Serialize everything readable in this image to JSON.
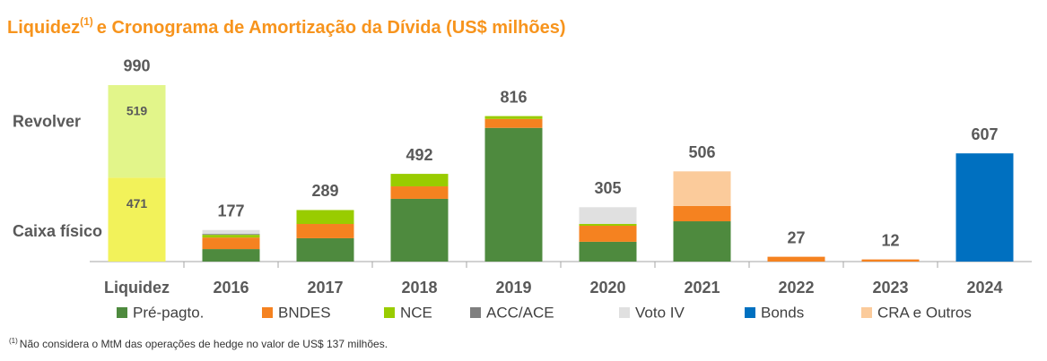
{
  "chart_data": {
    "type": "bar",
    "stacked": true,
    "title": {
      "main": "Liquidez",
      "note": "(1)",
      "rest": "e Cronograma de Amortização da Dívida (US$ milhões)"
    },
    "liquidez": {
      "category": "Liquidez",
      "total": 990,
      "segments": [
        {
          "label": "Caixa físico",
          "value": 471,
          "color": "#f2f25a"
        },
        {
          "label": "Revolver",
          "value": 519,
          "color": "#e2f58a"
        }
      ]
    },
    "categories": [
      "2016",
      "2017",
      "2018",
      "2019",
      "2020",
      "2021",
      "2022",
      "2023",
      "2024"
    ],
    "series": [
      {
        "name": "Pré-pagto.",
        "color": "#4e8a3e",
        "values": [
          70,
          131,
          352,
          750,
          111,
          226,
          null,
          null,
          null
        ]
      },
      {
        "name": "BNDES",
        "color": "#f58220",
        "values": [
          65,
          80,
          70,
          50,
          90,
          86,
          27,
          12,
          null
        ]
      },
      {
        "name": "NCE",
        "color": "#99cc00",
        "values": [
          15,
          78,
          70,
          16,
          10,
          null,
          null,
          null,
          null
        ]
      },
      {
        "name": "ACC/ACE",
        "color": "#7f7f7f",
        "values": [
          5,
          null,
          null,
          null,
          null,
          null,
          null,
          null,
          null
        ]
      },
      {
        "name": "Voto IV",
        "color": "#e0e0e0",
        "values": [
          22,
          null,
          null,
          null,
          94,
          null,
          null,
          null,
          null
        ]
      },
      {
        "name": "Bonds",
        "color": "#0070c0",
        "values": [
          null,
          null,
          null,
          null,
          null,
          null,
          null,
          null,
          607
        ]
      },
      {
        "name": "CRA e Outros",
        "color": "#fbcb9b",
        "values": [
          null,
          null,
          null,
          null,
          null,
          194,
          null,
          null,
          null
        ]
      }
    ],
    "totals": [
      177,
      289,
      492,
      816,
      305,
      506,
      27,
      12,
      607
    ],
    "ylim": [
      0,
      1000
    ],
    "legend": "bottom",
    "footnote": {
      "mark": "(1)",
      "text": "Não considera o MtM das operações de hedge no valor de US$ 137 milhões."
    }
  }
}
